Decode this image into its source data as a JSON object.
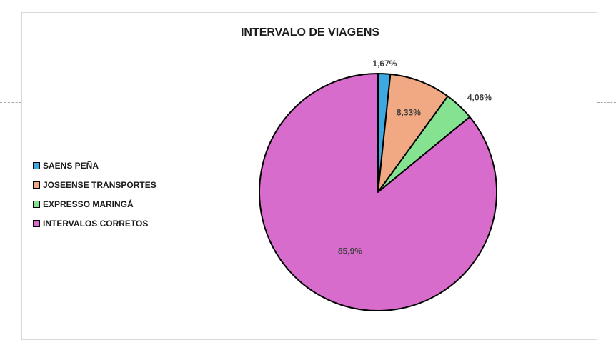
{
  "chart_data": {
    "type": "pie",
    "title": "INTERVALO DE VIAGENS",
    "legend_position": "left",
    "slices": [
      {
        "label": "SAENS PEÑA",
        "value": 1.67,
        "data_label": "1,67%",
        "color": "#3ea8e0"
      },
      {
        "label": "JOSEENSE TRANSPORTES",
        "value": 8.33,
        "data_label": "8,33%",
        "color": "#f1a983"
      },
      {
        "label": "EXPRESSO MARINGÁ",
        "value": 4.06,
        "data_label": "4,06%",
        "color": "#84e291"
      },
      {
        "label": "INTERVALOS CORRETOS",
        "value": 85.9,
        "data_label": "85,9%",
        "color": "#d86ccc"
      }
    ]
  }
}
